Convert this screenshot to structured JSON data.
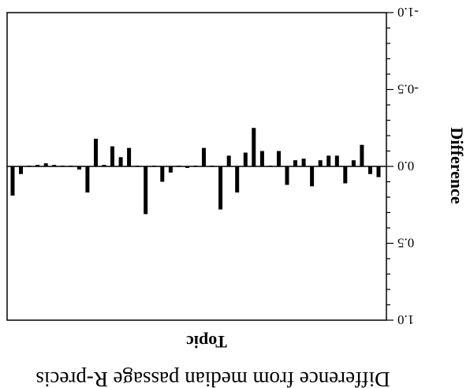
{
  "chart_data": {
    "type": "bar",
    "title": "Difference from median passage R-precis",
    "xlabel": "Topic",
    "ylabel": "Difference",
    "ylim": [
      -1.0,
      1.0
    ],
    "yticks": [
      "-1.0",
      "-0.5",
      "0.0",
      "0.5",
      "1.0"
    ],
    "grid": false,
    "legend": "none",
    "orientation": "rotated-180",
    "bar_color": "#000000",
    "values": [
      0.07,
      0.05,
      -0.14,
      -0.04,
      0.11,
      -0.07,
      -0.07,
      -0.04,
      0.13,
      -0.05,
      -0.04,
      0.12,
      -0.1,
      -0.0,
      -0.1,
      -0.25,
      -0.09,
      0.17,
      -0.07,
      0.28,
      -0.0,
      -0.12,
      0.0,
      0.01,
      -0.0,
      0.04,
      0.1,
      0.0,
      0.31,
      -0.0,
      -0.12,
      -0.06,
      -0.13,
      -0.01,
      -0.18,
      0.17,
      0.02,
      0.0,
      0.0,
      -0.01,
      -0.02,
      -0.01,
      0.0,
      0.05,
      0.19
    ]
  }
}
